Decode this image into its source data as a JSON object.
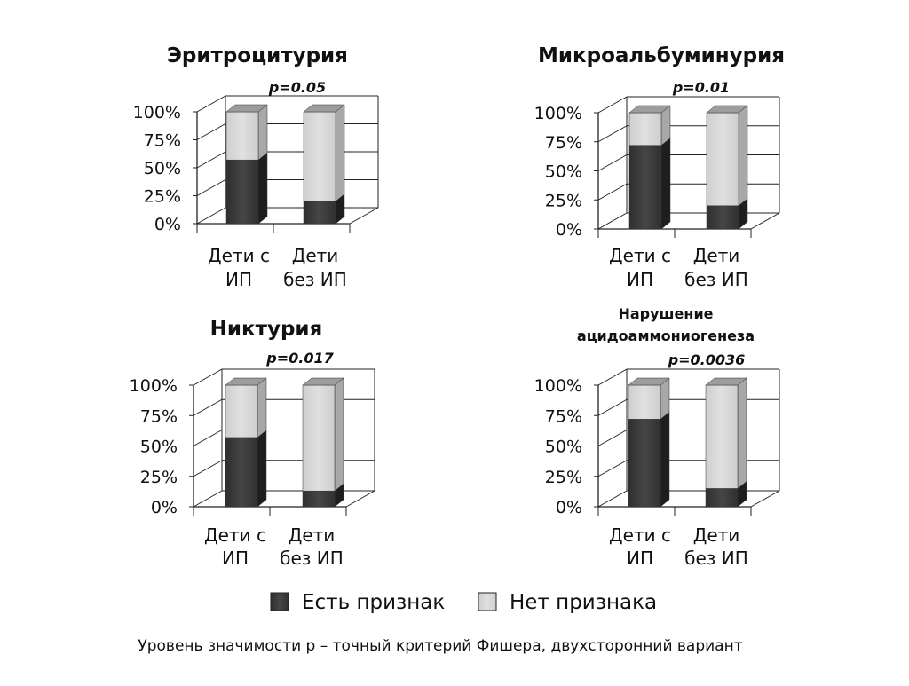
{
  "legend": {
    "items": [
      {
        "label": "Есть признак",
        "color": "#3a3a3a"
      },
      {
        "label": "Нет признака",
        "color": "#d4d4d4"
      }
    ]
  },
  "footnote": "Уровень значимости p – точный критерий Фишера, двухсторонний вариант",
  "colors": {
    "yes": "#3a3a3a",
    "no": "#d4d4d4"
  },
  "chart_data": [
    {
      "type": "bar",
      "stacked": true,
      "title": [
        "Эритроцитурия"
      ],
      "annotation": "p=0.05",
      "categories": [
        [
          "Дети с",
          "ИП"
        ],
        [
          "Дети",
          "без ИП"
        ]
      ],
      "yticks": [
        "0%",
        "25%",
        "50%",
        "75%",
        "100%"
      ],
      "ylim": [
        0,
        100
      ],
      "series": [
        {
          "name": "Есть признак",
          "values": [
            57,
            20
          ]
        },
        {
          "name": "Нет признака",
          "values": [
            43,
            80
          ]
        }
      ]
    },
    {
      "type": "bar",
      "stacked": true,
      "title": [
        "Микроальбуминурия"
      ],
      "annotation": "p=0.01",
      "categories": [
        [
          "Дети с",
          "ИП"
        ],
        [
          "Дети",
          "без ИП"
        ]
      ],
      "yticks": [
        "0%",
        "25%",
        "50%",
        "75%",
        "100%"
      ],
      "ylim": [
        0,
        100
      ],
      "series": [
        {
          "name": "Есть признак",
          "values": [
            72,
            20
          ]
        },
        {
          "name": "Нет признака",
          "values": [
            28,
            80
          ]
        }
      ]
    },
    {
      "type": "bar",
      "stacked": true,
      "title": [
        "Никтурия"
      ],
      "annotation": "p=0.017",
      "categories": [
        [
          "Дети с",
          "ИП"
        ],
        [
          "Дети",
          "без ИП"
        ]
      ],
      "yticks": [
        "0%",
        "25%",
        "50%",
        "75%",
        "100%"
      ],
      "ylim": [
        0,
        100
      ],
      "series": [
        {
          "name": "Есть признак",
          "values": [
            57,
            13
          ]
        },
        {
          "name": "Нет признака",
          "values": [
            43,
            87
          ]
        }
      ]
    },
    {
      "type": "bar",
      "stacked": true,
      "title": [
        "Нарушение",
        "ацидоаммониогенеза"
      ],
      "annotation": "p=0.0036",
      "categories": [
        [
          "Дети с",
          "ИП"
        ],
        [
          "Дети",
          "без ИП"
        ]
      ],
      "yticks": [
        "0%",
        "25%",
        "50%",
        "75%",
        "100%"
      ],
      "ylim": [
        0,
        100
      ],
      "series": [
        {
          "name": "Есть признак",
          "values": [
            72,
            15
          ]
        },
        {
          "name": "Нет признака",
          "values": [
            28,
            85
          ]
        }
      ]
    }
  ]
}
